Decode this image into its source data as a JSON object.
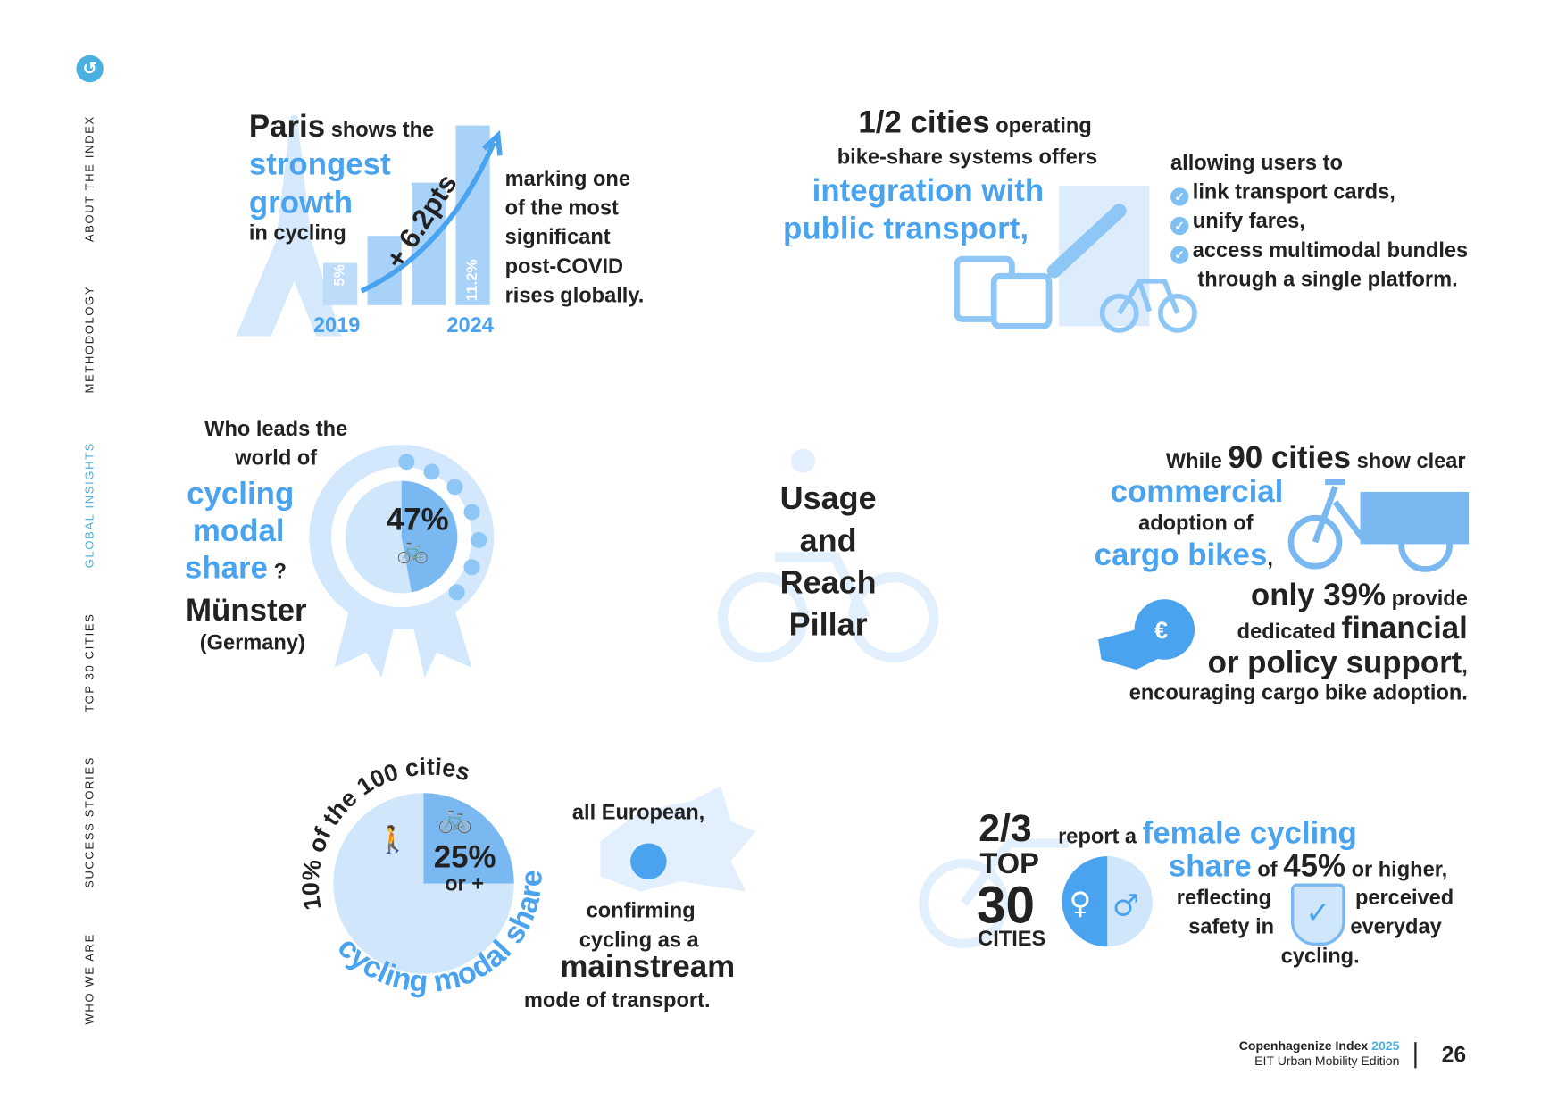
{
  "sidebar": {
    "back_icon": "undo-arrow-icon",
    "items": [
      {
        "label": "ABOUT THE INDEX"
      },
      {
        "label": "METHODOLOGY"
      },
      {
        "label": "GLOBAL INSIGHTS",
        "active": true
      },
      {
        "label": "TOP 30 CITIES"
      },
      {
        "label": "SUCCESS STORIES"
      },
      {
        "label": "WHO WE ARE"
      }
    ]
  },
  "colors": {
    "accent": "#4aa3ee",
    "light": "#cfe6fb",
    "text": "#222222",
    "sidebar_active": "#4bb0e0"
  },
  "paris": {
    "p1": "Paris",
    "p2": " shows the",
    "p3": "strongest",
    "p4": "growth",
    "p5": "in cycling",
    "bar1": "5%",
    "bar2": "11.2%",
    "growth": "+ 6.2pts",
    "year1": "2019",
    "year2": "2024",
    "side": [
      "marking one",
      "of the most",
      "significant",
      "post-COVID",
      "rises globally."
    ]
  },
  "bikeshare": {
    "h1": "1/2 cities",
    "h2": " operating",
    "h3": "bike-share systems offers",
    "h4": "integration with",
    "h5": "public transport,",
    "intro": "allowing users to",
    "items": [
      "link transport cards,",
      "unify fares,",
      "access multimodal bundles"
    ],
    "tail": "through a single platform."
  },
  "munster": {
    "q1": "Who leads the",
    "q2": "world of",
    "q3": "cycling",
    "q4": "modal",
    "q5": "share",
    "q6": " ?",
    "pct": "47%",
    "city": "Münster",
    "country": "(Germany)"
  },
  "pillar": {
    "lines": [
      "Usage",
      "and",
      "Reach",
      "Pillar"
    ]
  },
  "cargo": {
    "l1a": "While ",
    "l1b": "90 cities",
    "l1c": " show clear",
    "l2": "commercial",
    "l3": "adoption of",
    "l4": "cargo bikes",
    "l4b": ",",
    "l5a": "only 39%",
    "l5b": " provide",
    "l6a": "dedicated ",
    "l6b": "financial",
    "l7": "or policy support",
    "l7b": ",",
    "l8": "encouraging cargo bike adoption."
  },
  "europe": {
    "arc_top": "10% of the 100 cities",
    "arc_bottom": "cycling modal share",
    "pct": "25%",
    "orplus": "or +",
    "l1": "all European,",
    "l2": "confirming",
    "l3": "cycling as a",
    "l4": "mainstream",
    "l5": "mode of transport."
  },
  "female": {
    "frac": "2/3",
    "top": "TOP",
    "num": "30",
    "cities": "CITIES",
    "r1": "report a ",
    "r2": "female cycling",
    "r3": "share",
    "r4": " of ",
    "r5": "45%",
    "r6": " or higher,",
    "c1": "reflecting",
    "c2": "safety in",
    "c3": "perceived",
    "c4": "everyday",
    "c5": "cycling."
  },
  "footer": {
    "brand": "Copenhagenize Index",
    "year": "2025",
    "edition": "EIT Urban Mobility Edition",
    "page": "26"
  }
}
